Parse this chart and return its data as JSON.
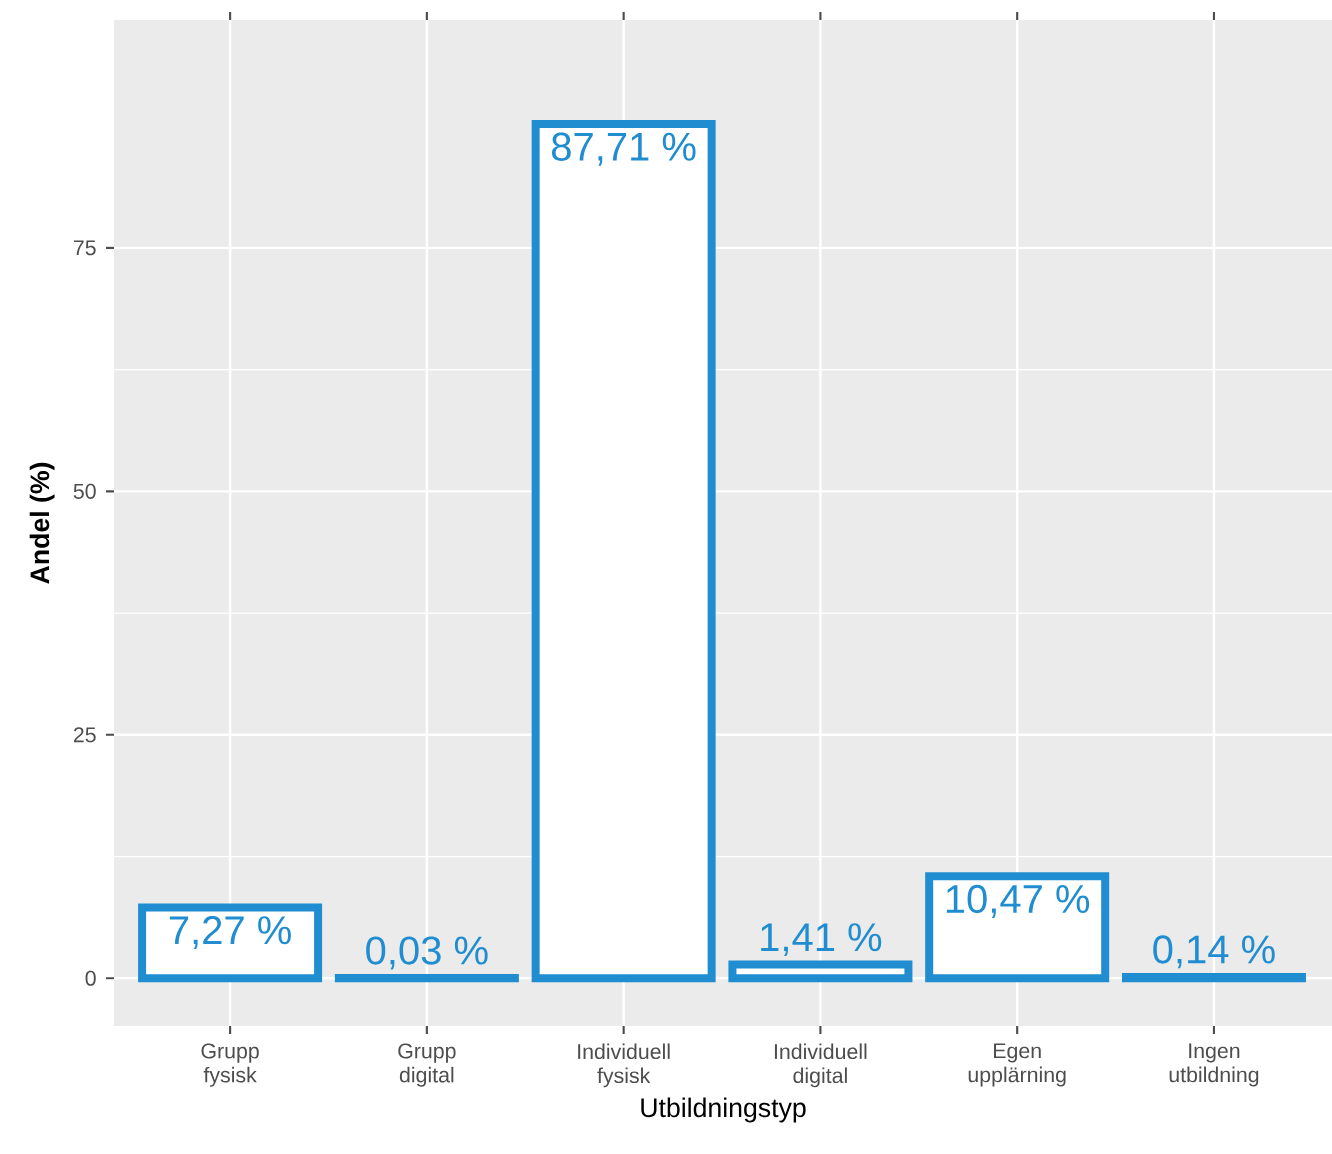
{
  "chart_data": {
    "type": "bar",
    "xlabel": "Utbildningstyp",
    "ylabel": "Andel (%)",
    "categories": [
      "Grupp fysisk",
      "Grupp digital",
      "Individuell fysisk",
      "Individuell digital",
      "Egen upplärning",
      "Ingen utbildning"
    ],
    "values": [
      7.27,
      0.03,
      87.71,
      1.41,
      10.47,
      0.14
    ],
    "value_labels": [
      "7,27 %",
      "0,03 %",
      "87,71 %",
      "1,41 %",
      "10,47 %",
      "0,14 %"
    ],
    "color": "#1f8dd0",
    "ylim": [
      -4.9,
      98.4
    ],
    "yticks": [
      0,
      25,
      50,
      75
    ],
    "grid": true
  }
}
